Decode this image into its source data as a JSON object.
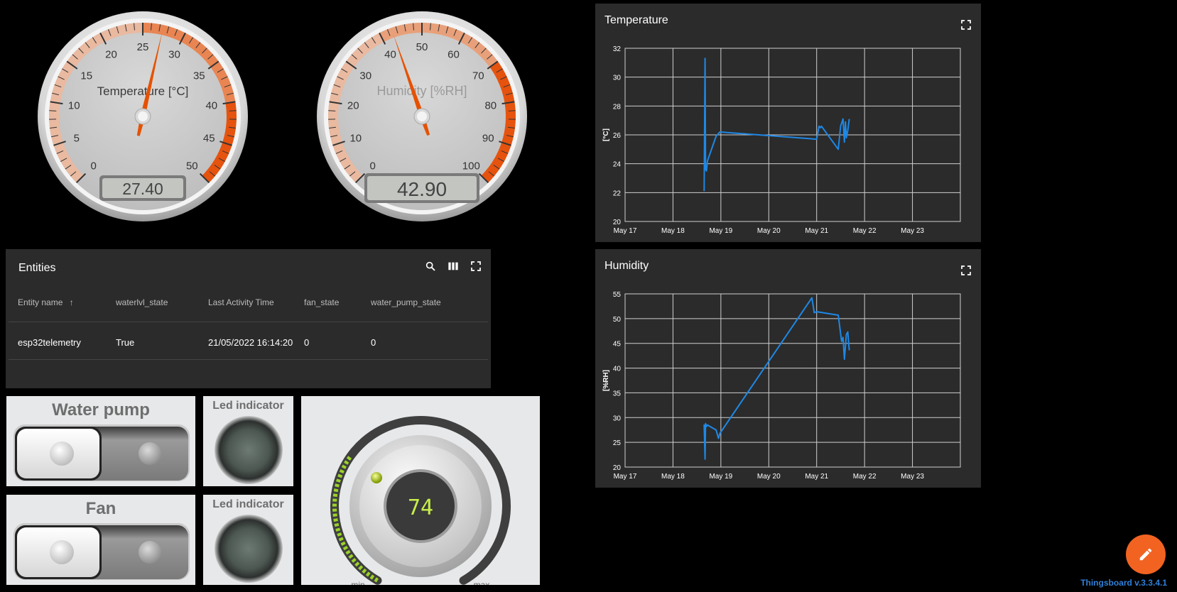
{
  "gauges": {
    "temperature": {
      "title": "Temperature [°C]",
      "ticks": [
        "0",
        "5",
        "10",
        "15",
        "20",
        "25",
        "30",
        "35",
        "40",
        "45",
        "50"
      ],
      "value": 27.4,
      "display": "27.40",
      "min": 0,
      "max": 50,
      "colors": {
        "face": "#c9c9c9",
        "needle": "#e65100",
        "highlight_low": "#e9b9a0",
        "highlight_mid": "#e88552",
        "highlight_high": "#e5530f"
      }
    },
    "humidity": {
      "title": "Humidity [%RH]",
      "ticks": [
        "0",
        "10",
        "20",
        "30",
        "40",
        "50",
        "60",
        "70",
        "80",
        "90",
        "100"
      ],
      "value": 42.9,
      "display": "42.90",
      "min": 0,
      "max": 100,
      "colors": {
        "face": "#c9c9c9",
        "needle": "#e65100"
      }
    }
  },
  "entities": {
    "title": "Entities",
    "columns": [
      "Entity name",
      "waterlvl_state",
      "Last Activity Time",
      "fan_state",
      "water_pump_state"
    ],
    "sort_column": "Entity name",
    "rows": [
      [
        "esp32telemetry",
        "True",
        "21/05/2022 16:14:20",
        "0",
        "0"
      ]
    ],
    "icons": [
      "search-icon",
      "columns-icon",
      "fullscreen-icon"
    ]
  },
  "switches": [
    {
      "title": "Water pump",
      "state": false
    },
    {
      "title": "Fan",
      "state": false
    }
  ],
  "leds": [
    {
      "title": "Led indicator",
      "on": false
    },
    {
      "title": "Led indicator",
      "on": false
    }
  ],
  "knob": {
    "value": "74",
    "min_label": "min",
    "max_label": "max",
    "level": 0.74
  },
  "charts": [
    {
      "title": "Temperature"
    },
    {
      "title": "Humidity"
    }
  ],
  "chart_data": [
    {
      "type": "line",
      "title": "Temperature",
      "ylabel": "[°C]",
      "x_ticks": [
        "May 17",
        "May 18",
        "May 19",
        "May 20",
        "May 21",
        "May 22",
        "May 23"
      ],
      "y_ticks": [
        "20",
        "22",
        "24",
        "26",
        "28",
        "30",
        "32"
      ],
      "xlim": [
        0,
        7
      ],
      "ylim": [
        20,
        32
      ],
      "grid": true,
      "color": "#1e88e5",
      "series": [
        {
          "x": [
            1.65,
            1.67,
            1.68,
            1.7,
            1.72,
            1.9,
            1.98,
            4.0,
            4.05,
            4.08,
            4.1,
            4.45,
            4.5,
            4.55,
            4.58,
            4.6,
            4.62,
            4.65,
            4.68
          ],
          "y": [
            22.1,
            31.3,
            23.6,
            23.5,
            24.2,
            25.9,
            26.2,
            25.7,
            26.6,
            26.5,
            26.6,
            25.0,
            26.6,
            27.1,
            25.5,
            26.9,
            25.8,
            26.3,
            27.1
          ]
        }
      ]
    },
    {
      "type": "line",
      "title": "Humidity",
      "ylabel": "[%RH]",
      "x_ticks": [
        "May 17",
        "May 18",
        "May 19",
        "May 20",
        "May 21",
        "May 22",
        "May 23"
      ],
      "y_ticks": [
        "20",
        "25",
        "30",
        "35",
        "40",
        "45",
        "50",
        "55"
      ],
      "xlim": [
        0,
        7
      ],
      "ylim": [
        20,
        55
      ],
      "grid": true,
      "color": "#1e88e5",
      "series": [
        {
          "x": [
            1.65,
            1.67,
            1.68,
            1.7,
            1.72,
            1.9,
            1.95,
            1.98,
            3.9,
            3.95,
            4.0,
            4.45,
            4.5,
            4.52,
            4.55,
            4.58,
            4.62,
            4.65,
            4.68
          ],
          "y": [
            28.6,
            21.6,
            28.8,
            28.2,
            28.5,
            27.5,
            25.8,
            26.8,
            54.2,
            51.2,
            51.4,
            50.7,
            47.0,
            45.4,
            46.2,
            41.8,
            46.8,
            47.3,
            43.6
          ]
        }
      ]
    }
  ],
  "footer": {
    "version": "Thingsboard v.3.3.4.1",
    "fab_icon": "edit-pencil-icon"
  }
}
